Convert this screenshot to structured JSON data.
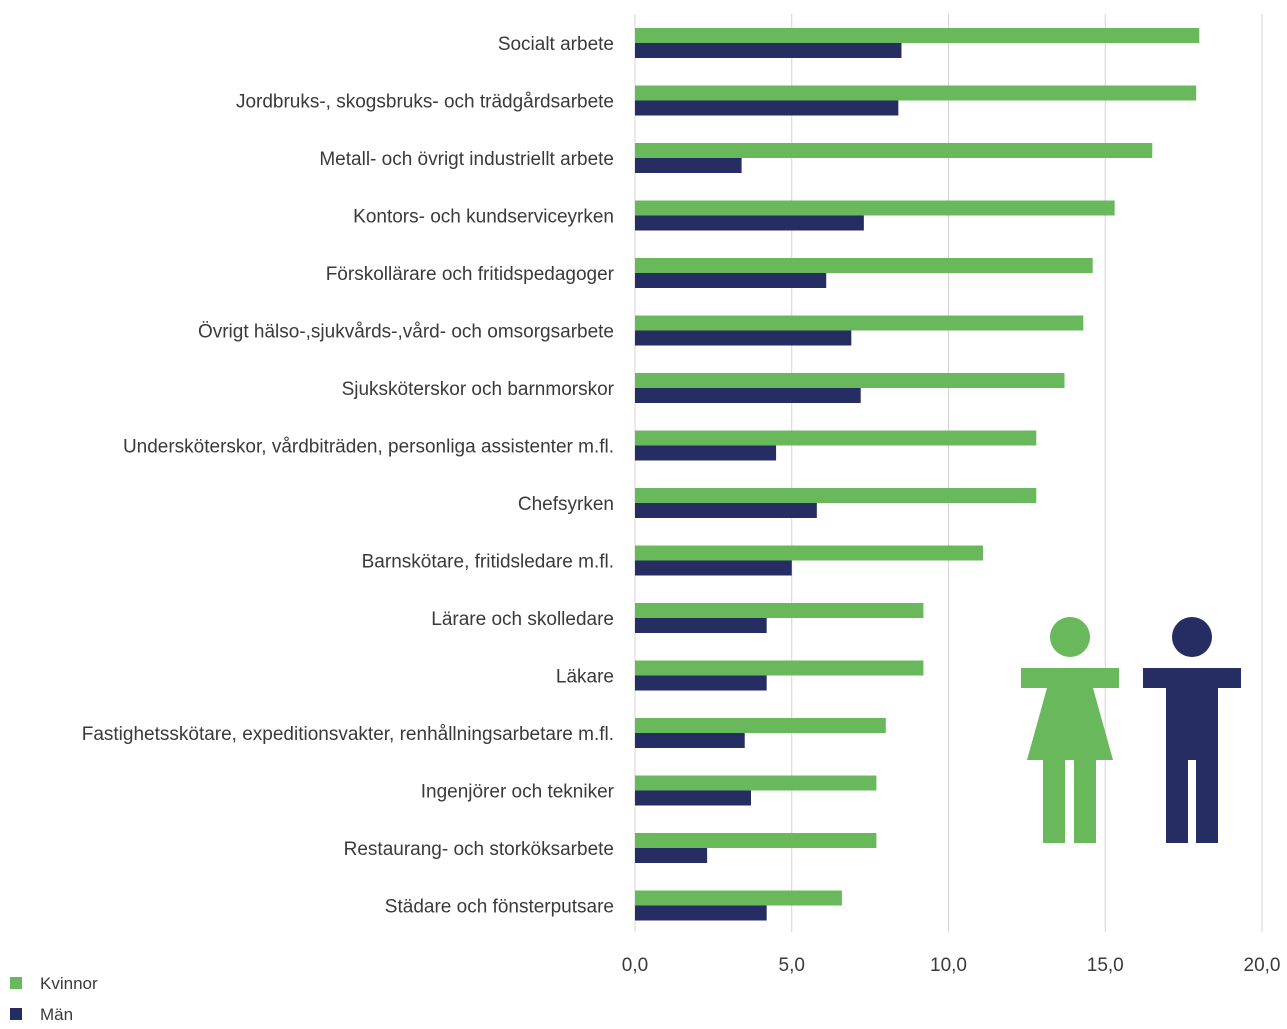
{
  "chart_data": {
    "type": "bar",
    "orientation": "horizontal",
    "categories": [
      "Socialt arbete",
      "Jordbruks-, skogsbruks- och trädgårdsarbete",
      "Metall- och övrigt industriellt arbete",
      "Kontors- och kundserviceyrken",
      "Förskollärare och fritidspedagoger",
      "Övrigt hälso-,sjukvårds-,vård- och omsorgsarbete",
      "Sjuksköterskor och barnmorskor",
      "Undersköterskor, vårdbiträden, personliga assistenter m.fl.",
      "Chefsyrken",
      "Barnskötare, fritidsledare m.fl.",
      "Lärare och skolledare",
      "Läkare",
      "Fastighetsskötare, expeditionsvakter, renhållningsarbetare m.fl.",
      "Ingenjörer och tekniker",
      "Restaurang- och storköksarbete",
      "Städare och fönsterputsare"
    ],
    "series": [
      {
        "name": "Kvinnor",
        "color": "#6ab85c",
        "values": [
          18.0,
          17.9,
          16.5,
          15.3,
          14.6,
          14.3,
          13.7,
          12.8,
          12.8,
          11.1,
          9.2,
          9.2,
          8.0,
          7.7,
          7.7,
          6.6
        ]
      },
      {
        "name": "Män",
        "color": "#262d63",
        "values": [
          8.5,
          8.4,
          3.4,
          7.3,
          6.1,
          6.9,
          7.2,
          4.5,
          5.8,
          5.0,
          4.2,
          4.2,
          3.5,
          3.7,
          2.3,
          4.2
        ]
      }
    ],
    "xlim": [
      0,
      20
    ],
    "xticks": [
      "0,0",
      "5,0",
      "10,0",
      "15,0",
      "20,0"
    ],
    "grid": "vertical",
    "legend_position": "bottom-left",
    "title": "",
    "xlabel": "",
    "ylabel": ""
  },
  "illustration": {
    "woman_icon_color": "#6ab85c",
    "man_icon_color": "#262d63"
  }
}
